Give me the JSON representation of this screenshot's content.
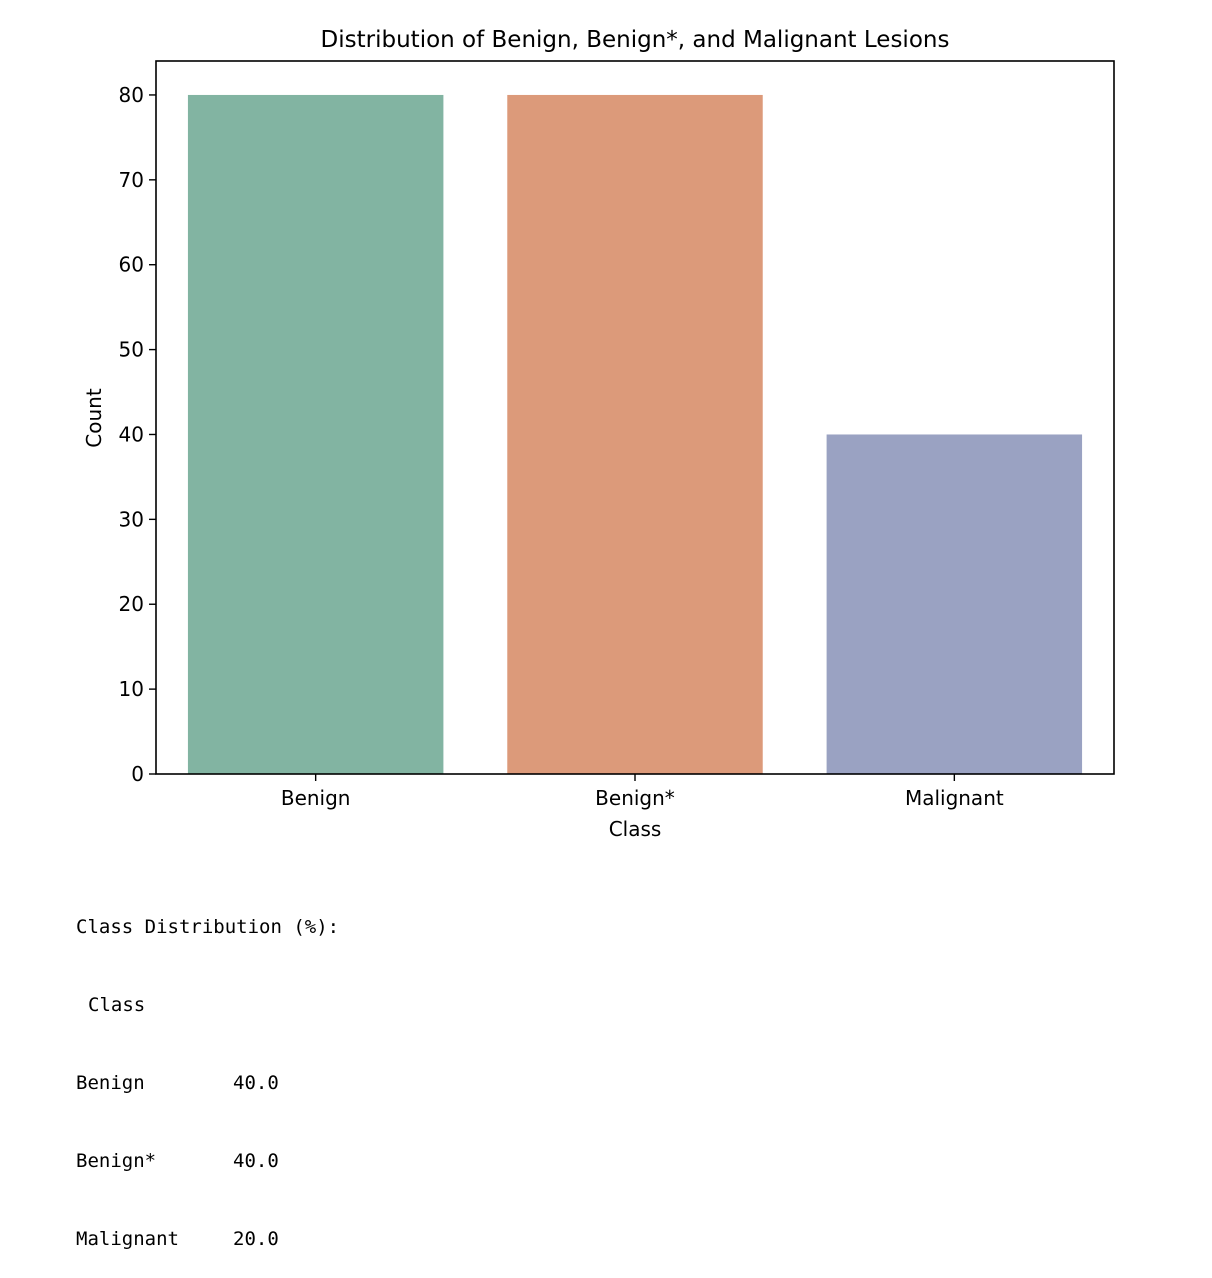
{
  "chart_data": {
    "type": "bar",
    "title": "Distribution of Benign, Benign*, and Malignant Lesions",
    "xlabel": "Class",
    "ylabel": "Count",
    "categories": [
      "Benign",
      "Benign*",
      "Malignant"
    ],
    "values": [
      80,
      80,
      40
    ],
    "colors": [
      "#82b4a2",
      "#dc9a7a",
      "#9aa2c2"
    ],
    "ylim": [
      0,
      84
    ],
    "yticks": [
      0,
      10,
      20,
      30,
      40,
      50,
      60,
      70,
      80
    ],
    "grid": false
  },
  "output": {
    "heading": "Class Distribution (%):",
    "index_name": "Class",
    "rows": [
      {
        "label": "Benign",
        "value": "40.0"
      },
      {
        "label": "Benign*",
        "value": "40.0"
      },
      {
        "label": "Malignant",
        "value": "20.0"
      }
    ]
  }
}
